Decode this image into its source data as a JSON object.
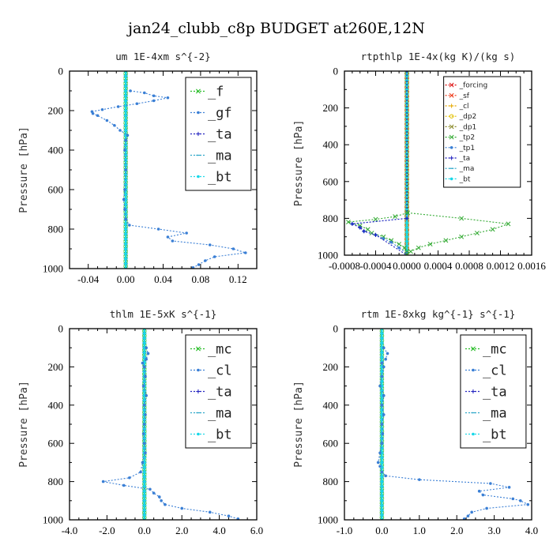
{
  "suptitle": "jan24_clubb_c8p  BUDGET at260E,12N",
  "chart_data": [
    {
      "type": "line",
      "title": "um   1E-4xm s^{-2}",
      "xlabel": "",
      "ylabel": "",
      "xlim": [
        -0.06,
        0.14
      ],
      "ylim": [
        1000,
        0
      ],
      "x_ticks": [
        "-0.04",
        "0.00",
        "0.04",
        "0.08",
        "0.12"
      ],
      "x_tick_values": [
        -0.04,
        0.0,
        0.04,
        0.08,
        0.12
      ],
      "y_ticks": [
        "0",
        "200",
        "400",
        "600",
        "800",
        "1000"
      ],
      "legend": "top-right",
      "series": [
        {
          "name": "_f",
          "color": "#22bb22",
          "marker": "x",
          "y": [
            0,
            100,
            200,
            300,
            400,
            500,
            600,
            700,
            800,
            900,
            1000
          ],
          "x": [
            0,
            0,
            0,
            0,
            0,
            0,
            0,
            0,
            0,
            0,
            0
          ]
        },
        {
          "name": "_gf",
          "color": "#3a7fd5",
          "marker": "dot",
          "y": [
            100,
            110,
            125,
            135,
            150,
            165,
            180,
            195,
            205,
            215,
            225,
            250,
            275,
            300,
            325,
            350,
            400,
            500,
            600,
            650,
            700,
            750,
            780,
            800,
            820,
            840,
            860,
            880,
            900,
            920,
            940,
            960,
            980,
            995
          ],
          "x": [
            0.005,
            0.02,
            0.03,
            0.045,
            0.03,
            0.012,
            -0.008,
            -0.025,
            -0.036,
            -0.035,
            -0.03,
            -0.02,
            -0.012,
            -0.006,
            0.002,
            0.0,
            -0.001,
            0.0,
            -0.001,
            -0.002,
            -0.001,
            0.0,
            0.004,
            0.035,
            0.065,
            0.045,
            0.05,
            0.09,
            0.115,
            0.128,
            0.095,
            0.085,
            0.078,
            0.072
          ]
        },
        {
          "name": "_ta",
          "color": "#1f1fbf",
          "marker": "plus",
          "y": [
            0,
            1000
          ],
          "x": [
            0,
            0
          ]
        },
        {
          "name": "_ma",
          "color": "#2aa6c8",
          "marker": "dash",
          "y": [
            0,
            1000
          ],
          "x": [
            0,
            0
          ]
        },
        {
          "name": "_bt",
          "color": "#18d8e8",
          "marker": "dot",
          "y": [
            0,
            1000
          ],
          "x": [
            0,
            0
          ]
        }
      ]
    },
    {
      "type": "line",
      "title": "rtpthlp   1E-4x(kg K)/(kg s)",
      "xlabel": "",
      "ylabel": "",
      "xlim": [
        -0.0008,
        0.0016
      ],
      "ylim": [
        1000,
        0
      ],
      "x_ticks": [
        "-0.0008",
        "-0.0004",
        "0.0000",
        "0.0004",
        "0.0008",
        "0.0012",
        "0.0016"
      ],
      "x_tick_values": [
        -0.0008,
        -0.0004,
        0.0,
        0.0004,
        0.0008,
        0.0012,
        0.0016
      ],
      "y_ticks": [
        "0",
        "200",
        "400",
        "600",
        "800",
        "1000"
      ],
      "legend": "top-right",
      "series": [
        {
          "name": "_forcing",
          "color": "#dd1111",
          "marker": "x",
          "y": [
            0,
            1000
          ],
          "x": [
            0,
            0
          ]
        },
        {
          "name": "_sf",
          "color": "#ee3311",
          "marker": "x",
          "y": [
            0,
            1000
          ],
          "x": [
            0,
            0
          ]
        },
        {
          "name": "_cl",
          "color": "#e6a800",
          "marker": "plus",
          "y": [
            0,
            1000
          ],
          "x": [
            0,
            0
          ]
        },
        {
          "name": "_dp2",
          "color": "#e3c000",
          "marker": "circle",
          "y": [
            0,
            1000
          ],
          "x": [
            0,
            0
          ]
        },
        {
          "name": "_dp1",
          "color": "#8a8a2a",
          "marker": "x",
          "y": [
            0,
            1000
          ],
          "x": [
            0,
            0
          ]
        },
        {
          "name": "_tp2",
          "color": "#33aa33",
          "marker": "x",
          "y": [
            0,
            770,
            790,
            805,
            820,
            840,
            860,
            880,
            900,
            920,
            940,
            960,
            980,
            995
          ],
          "x": [
            0,
            1e-05,
            -0.00015,
            -0.0004,
            -0.00075,
            -0.0006,
            -0.0005,
            -0.00045,
            -0.0003,
            -0.0002,
            -0.0001,
            -3e-05,
            0.0,
            0.0
          ]
        },
        {
          "name": "_tp1",
          "color": "#3a7fd5",
          "marker": "dot",
          "y": [
            0,
            800,
            830,
            850,
            870,
            890,
            910,
            930,
            960,
            990
          ],
          "x": [
            0,
            0.0,
            -0.0007,
            -0.0006,
            -0.00055,
            -0.0004,
            -0.0003,
            -0.0002,
            -0.0001,
            0.0
          ]
        },
        {
          "name": "_ta",
          "color": "#1f1fbf",
          "marker": "plus",
          "y": [
            0,
            800,
            830,
            850,
            870,
            890,
            1000
          ],
          "x": [
            0,
            0.0,
            -0.0007,
            -0.0006,
            -0.00055,
            -0.0004,
            0.0
          ]
        },
        {
          "name": "_ma",
          "color": "#2aa6c8",
          "marker": "dash",
          "y": [
            0,
            1000
          ],
          "x": [
            0,
            0
          ]
        },
        {
          "name": "_bt",
          "color": "#18d8e8",
          "marker": "dot",
          "y": [
            0,
            1000
          ],
          "x": [
            0,
            0
          ]
        },
        {
          "name": "",
          "color": "#33aa33",
          "marker": "x",
          "y": [
            770,
            800,
            830,
            860,
            880,
            900,
            920,
            940,
            960,
            980,
            995
          ],
          "x": [
            1e-05,
            0.0007,
            0.0013,
            0.0011,
            0.0009,
            0.0007,
            0.0005,
            0.0003,
            0.00015,
            5e-05,
            0.0
          ]
        }
      ]
    },
    {
      "type": "line",
      "title": "thlm   1E-5xK s^{-1}",
      "xlabel": "",
      "ylabel": "",
      "xlim": [
        -4.0,
        6.0
      ],
      "ylim": [
        1000,
        0
      ],
      "x_ticks": [
        "-4.0",
        "-2.0",
        "0.0",
        "2.0",
        "4.0",
        "6.0"
      ],
      "x_tick_values": [
        -4.0,
        -2.0,
        0.0,
        2.0,
        4.0,
        6.0
      ],
      "y_ticks": [
        "0",
        "200",
        "400",
        "600",
        "800",
        "1000"
      ],
      "legend": "top-right",
      "series": [
        {
          "name": "_mc",
          "color": "#22bb22",
          "marker": "x",
          "y": [
            0,
            100,
            200,
            300,
            400,
            500,
            600,
            700,
            800,
            900,
            1000
          ],
          "x": [
            0,
            0,
            0,
            0,
            0,
            0,
            0,
            0,
            0,
            0,
            0
          ]
        },
        {
          "name": "_cl",
          "color": "#3a7fd5",
          "marker": "dot",
          "y": [
            100,
            130,
            160,
            180,
            200,
            250,
            300,
            350,
            400,
            450,
            500,
            550,
            600,
            650,
            700,
            750,
            780,
            800,
            820,
            840,
            860,
            880,
            900,
            920,
            940,
            960,
            980,
            995
          ],
          "x": [
            0.1,
            0.2,
            0.1,
            -0.1,
            0.0,
            0.05,
            -0.05,
            0.1,
            0.0,
            0.05,
            0.0,
            -0.05,
            0.0,
            0.05,
            -0.1,
            -0.2,
            -0.8,
            -2.2,
            -1.1,
            0.3,
            0.5,
            0.8,
            0.9,
            1.1,
            2.0,
            3.5,
            4.5,
            5.0
          ]
        },
        {
          "name": "_ta",
          "color": "#1f1fbf",
          "marker": "plus",
          "y": [
            0,
            1000
          ],
          "x": [
            0,
            0
          ]
        },
        {
          "name": "_ma",
          "color": "#2aa6c8",
          "marker": "dash",
          "y": [
            0,
            1000
          ],
          "x": [
            0,
            0
          ]
        },
        {
          "name": "_bt",
          "color": "#18d8e8",
          "marker": "dot",
          "y": [
            0,
            1000
          ],
          "x": [
            0,
            0
          ]
        }
      ]
    },
    {
      "type": "line",
      "title": "rtm   1E-8xkg kg^{-1} s^{-1}",
      "xlabel": "",
      "ylabel": "",
      "xlim": [
        -1.0,
        4.0
      ],
      "ylim": [
        1000,
        0
      ],
      "x_ticks": [
        "-1.0",
        "0.0",
        "1.0",
        "2.0",
        "3.0",
        "4.0"
      ],
      "x_tick_values": [
        -1.0,
        0.0,
        1.0,
        2.0,
        3.0,
        4.0
      ],
      "y_ticks": [
        "0",
        "200",
        "400",
        "600",
        "800",
        "1000"
      ],
      "legend": "top-right",
      "series": [
        {
          "name": "_mc",
          "color": "#22bb22",
          "marker": "x",
          "y": [
            0,
            100,
            200,
            300,
            400,
            500,
            600,
            700,
            800,
            900,
            1000
          ],
          "x": [
            0,
            0,
            0,
            0,
            0,
            0,
            0,
            0,
            0,
            0,
            0
          ]
        },
        {
          "name": "_cl",
          "color": "#3a7fd5",
          "marker": "dot",
          "y": [
            100,
            130,
            160,
            180,
            200,
            250,
            300,
            350,
            400,
            450,
            500,
            550,
            600,
            650,
            700,
            720,
            750,
            770,
            790,
            810,
            830,
            850,
            870,
            890,
            900,
            920,
            940,
            960,
            980,
            995
          ],
          "x": [
            0.05,
            0.15,
            0.1,
            0.0,
            0.05,
            0.0,
            -0.05,
            0.05,
            0.0,
            0.05,
            0.0,
            0.02,
            0.0,
            -0.05,
            -0.1,
            -0.05,
            0.0,
            0.1,
            1.0,
            2.9,
            3.4,
            2.6,
            2.7,
            3.5,
            3.7,
            3.9,
            2.8,
            2.4,
            2.3,
            2.2
          ]
        },
        {
          "name": "_ta",
          "color": "#1f1fbf",
          "marker": "plus",
          "y": [
            0,
            1000
          ],
          "x": [
            0,
            0
          ]
        },
        {
          "name": "_ma",
          "color": "#2aa6c8",
          "marker": "dash",
          "y": [
            0,
            1000
          ],
          "x": [
            0,
            0
          ]
        },
        {
          "name": "_bt",
          "color": "#18d8e8",
          "marker": "dot",
          "y": [
            0,
            1000
          ],
          "x": [
            0,
            0
          ]
        }
      ]
    }
  ],
  "y_axis_label": "Pressure [hPa]"
}
